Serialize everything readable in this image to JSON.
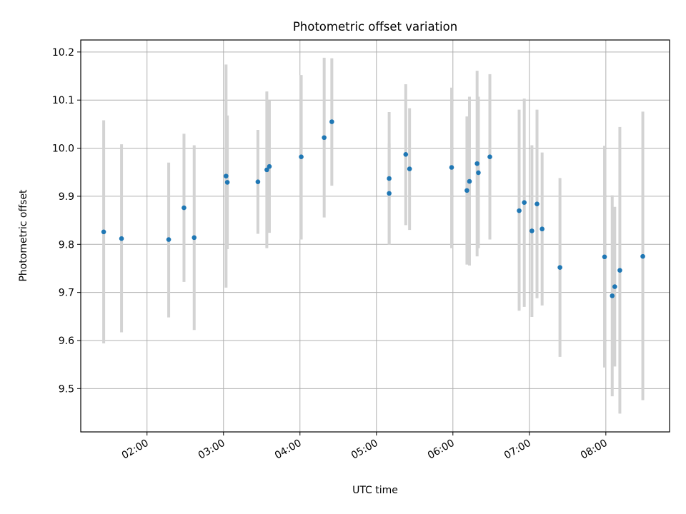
{
  "chart_data": {
    "type": "scatter",
    "title": "Photometric offset variation",
    "xlabel": "UTC time",
    "ylabel": "Photometric offset",
    "x_unit": "UTC time (HH:MM)",
    "xlim": [
      "01:08",
      "08:50"
    ],
    "ylim": [
      9.41,
      10.225
    ],
    "x_ticks": [
      "02:00",
      "03:00",
      "04:00",
      "05:00",
      "06:00",
      "07:00",
      "08:00"
    ],
    "y_ticks": [
      9.5,
      9.6,
      9.7,
      9.8,
      9.9,
      10.0,
      10.1,
      10.2
    ],
    "y_tick_labels": [
      "9.5",
      "9.6",
      "9.7",
      "9.8",
      "9.9",
      "10.0",
      "10.1",
      "10.2"
    ],
    "grid": true,
    "colors": {
      "point": "#1f77b4",
      "error_bar": "#d3d3d3"
    },
    "points": [
      {
        "x": "01:26",
        "y": 9.826,
        "low": 9.594,
        "high": 10.058
      },
      {
        "x": "01:40",
        "y": 9.812,
        "low": 9.617,
        "high": 10.008
      },
      {
        "x": "02:17",
        "y": 9.81,
        "low": 9.648,
        "high": 9.97
      },
      {
        "x": "02:29",
        "y": 9.876,
        "low": 9.722,
        "high": 10.03
      },
      {
        "x": "02:37",
        "y": 9.814,
        "low": 9.622,
        "high": 10.006
      },
      {
        "x": "03:02",
        "y": 9.942,
        "low": 9.71,
        "high": 10.174
      },
      {
        "x": "03:03",
        "y": 9.929,
        "low": 9.79,
        "high": 10.068
      },
      {
        "x": "03:27",
        "y": 9.93,
        "low": 9.822,
        "high": 10.038
      },
      {
        "x": "03:34",
        "y": 9.955,
        "low": 9.792,
        "high": 10.118
      },
      {
        "x": "03:36",
        "y": 9.962,
        "low": 9.824,
        "high": 10.1
      },
      {
        "x": "04:01",
        "y": 9.982,
        "low": 9.81,
        "high": 10.152
      },
      {
        "x": "04:19",
        "y": 10.022,
        "low": 9.856,
        "high": 10.188
      },
      {
        "x": "04:25",
        "y": 10.055,
        "low": 9.922,
        "high": 10.187
      },
      {
        "x": "05:10",
        "y": 9.937,
        "low": 9.8,
        "high": 10.075
      },
      {
        "x": "05:10",
        "y": 9.906,
        "low": 9.8,
        "high": 10.01
      },
      {
        "x": "05:23",
        "y": 9.987,
        "low": 9.84,
        "high": 10.133
      },
      {
        "x": "05:26",
        "y": 9.957,
        "low": 9.83,
        "high": 10.083
      },
      {
        "x": "05:59",
        "y": 9.96,
        "low": 9.792,
        "high": 10.126
      },
      {
        "x": "06:11",
        "y": 9.912,
        "low": 9.758,
        "high": 10.066
      },
      {
        "x": "06:13",
        "y": 9.931,
        "low": 9.756,
        "high": 10.107
      },
      {
        "x": "06:19",
        "y": 9.968,
        "low": 9.775,
        "high": 10.161
      },
      {
        "x": "06:20",
        "y": 9.949,
        "low": 9.792,
        "high": 10.107
      },
      {
        "x": "06:29",
        "y": 9.982,
        "low": 9.81,
        "high": 10.154
      },
      {
        "x": "06:52",
        "y": 9.87,
        "low": 9.662,
        "high": 10.08
      },
      {
        "x": "06:56",
        "y": 9.887,
        "low": 9.67,
        "high": 10.103
      },
      {
        "x": "07:02",
        "y": 9.828,
        "low": 9.649,
        "high": 10.006
      },
      {
        "x": "07:06",
        "y": 9.884,
        "low": 9.688,
        "high": 10.08
      },
      {
        "x": "07:10",
        "y": 9.832,
        "low": 9.673,
        "high": 9.991
      },
      {
        "x": "07:24",
        "y": 9.752,
        "low": 9.566,
        "high": 9.938
      },
      {
        "x": "07:59",
        "y": 9.774,
        "low": 9.544,
        "high": 10.005
      },
      {
        "x": "08:05",
        "y": 9.693,
        "low": 9.484,
        "high": 9.902
      },
      {
        "x": "08:07",
        "y": 9.712,
        "low": 9.546,
        "high": 9.878
      },
      {
        "x": "08:11",
        "y": 9.746,
        "low": 9.448,
        "high": 10.044
      },
      {
        "x": "08:29",
        "y": 9.775,
        "low": 9.476,
        "high": 10.076
      }
    ]
  }
}
